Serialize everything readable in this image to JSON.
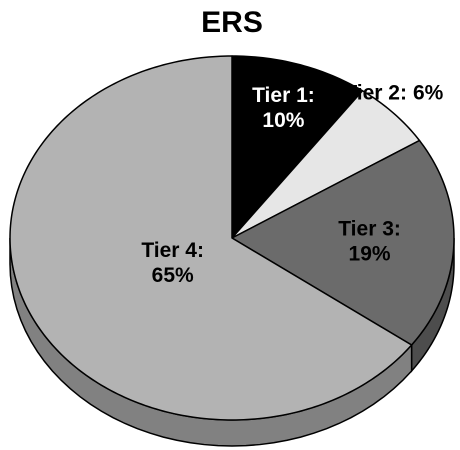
{
  "chart_data": {
    "type": "pie",
    "title": "ERS",
    "categories": [
      "Tier 1:",
      "Tier 2:",
      "Tier 3:",
      "Tier 4:"
    ],
    "values": [
      10,
      6,
      19,
      65
    ],
    "value_labels": [
      "10%",
      "6%",
      "19%",
      "65%"
    ],
    "colors": [
      "#000000",
      "#e6e6e6",
      "#6b6b6b",
      "#b3b3b3"
    ]
  }
}
